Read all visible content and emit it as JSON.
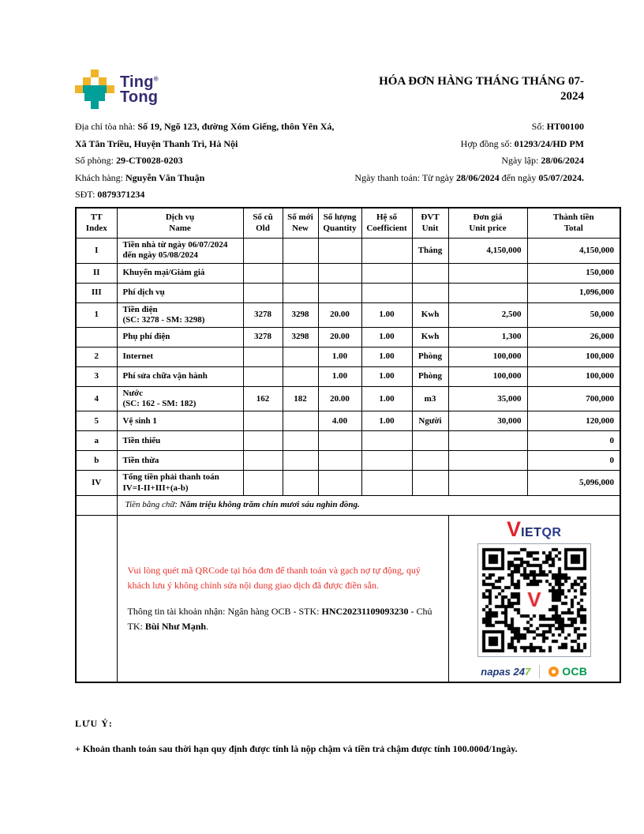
{
  "header": {
    "logo": {
      "ting": "Ting",
      "reg": "®",
      "tong": "Tong"
    },
    "title": "HÓA ĐƠN HÀNG THÁNG THÁNG 07-\n2024"
  },
  "info": {
    "addr_label": "Địa chỉ tòa nhà: ",
    "addr_value": "Số 19, Ngõ 123, đường Xóm Giếng, thôn Yên Xá,",
    "addr_value2": "Xã Tân Triều, Huyện Thanh Trì, Hà Nội",
    "room_label": "Số phòng: ",
    "room_value": "29-CT0028-0203",
    "customer_label": "Khách hàng: ",
    "customer_value": "Nguyễn Văn Thuận",
    "phone_label": "SĐT: ",
    "phone_value": "0879371234",
    "invoice_no_label": "Số: ",
    "invoice_no": "HT00100",
    "contract_label": "Hợp đồng số: ",
    "contract_no": "01293/24/HD PM",
    "issue_label": "Ngày lập: ",
    "issue_date": "28/06/2024",
    "pay_label": "Ngày thanh toán: Từ ngày ",
    "pay_from": "28/06/2024",
    "pay_mid": " đến ngày ",
    "pay_to": "05/07/2024",
    "pay_end": "."
  },
  "table": {
    "columns": [
      {
        "vi": "TT",
        "en": "Index"
      },
      {
        "vi": "Dịch vụ",
        "en": "Name"
      },
      {
        "vi": "Số cũ",
        "en": "Old"
      },
      {
        "vi": "Số mới",
        "en": "New"
      },
      {
        "vi": "Số lượng",
        "en": "Quantity"
      },
      {
        "vi": "Hệ số",
        "en": "Coefficient"
      },
      {
        "vi": "ĐVT",
        "en": "Unit"
      },
      {
        "vi": "Đơn giá",
        "en": "Unit price"
      },
      {
        "vi": "Thành tiền",
        "en": "Total"
      }
    ],
    "rows": [
      {
        "tt": "I",
        "name": "Tiền nhà từ ngày 06/07/2024\nđến ngày 05/08/2024",
        "old": "",
        "new": "",
        "qty": "",
        "coef": "",
        "unit": "Tháng",
        "price": "4,150,000",
        "total": "4,150,000"
      },
      {
        "tt": "II",
        "name": "Khuyến mại/Giảm giá",
        "old": "",
        "new": "",
        "qty": "",
        "coef": "",
        "unit": "",
        "price": "",
        "total": "150,000"
      },
      {
        "tt": "III",
        "name": "Phí dịch vụ",
        "old": "",
        "new": "",
        "qty": "",
        "coef": "",
        "unit": "",
        "price": "",
        "total": "1,096,000"
      },
      {
        "tt": "1",
        "name": "Tiền điện\n(SC: 3278 - SM: 3298)",
        "old": "3278",
        "new": "3298",
        "qty": "20.00",
        "coef": "1.00",
        "unit": "Kwh",
        "price": "2,500",
        "total": "50,000"
      },
      {
        "tt": "",
        "name": "Phụ phí điện",
        "old": "3278",
        "new": "3298",
        "qty": "20.00",
        "coef": "1.00",
        "unit": "Kwh",
        "price": "1,300",
        "total": "26,000"
      },
      {
        "tt": "2",
        "name": "Internet",
        "old": "",
        "new": "",
        "qty": "1.00",
        "coef": "1.00",
        "unit": "Phòng",
        "price": "100,000",
        "total": "100,000"
      },
      {
        "tt": "3",
        "name": "Phí sửa chữa vận hành",
        "old": "",
        "new": "",
        "qty": "1.00",
        "coef": "1.00",
        "unit": "Phòng",
        "price": "100,000",
        "total": "100,000"
      },
      {
        "tt": "4",
        "name": "Nước\n(SC: 162 - SM: 182)",
        "old": "162",
        "new": "182",
        "qty": "20.00",
        "coef": "1.00",
        "unit": "m3",
        "price": "35,000",
        "total": "700,000"
      },
      {
        "tt": "5",
        "name": "Vệ sinh 1",
        "old": "",
        "new": "",
        "qty": "4.00",
        "coef": "1.00",
        "unit": "Người",
        "price": "30,000",
        "total": "120,000"
      },
      {
        "tt": "a",
        "name": "Tiền thiếu",
        "old": "",
        "new": "",
        "qty": "",
        "coef": "",
        "unit": "",
        "price": "",
        "total": "0"
      },
      {
        "tt": "b",
        "name": "Tiền thừa",
        "old": "",
        "new": "",
        "qty": "",
        "coef": "",
        "unit": "",
        "price": "",
        "total": "0"
      },
      {
        "tt": "IV",
        "name": "Tổng tiền phải thanh toán\nIV=I-II+III+(a-b)",
        "old": "",
        "new": "",
        "qty": "",
        "coef": "",
        "unit": "",
        "price": "",
        "total": "5,096,000"
      }
    ],
    "amount_in_words_label": "Tiền bằng chữ: ",
    "amount_in_words": "Năm triệu không trăm chín mươi sáu nghìn đồng."
  },
  "payment": {
    "qr_notice": "Vui lòng quét mã QRCode tại hóa đơn để thanh toán và gạch nợ tự động, quý khách lưu ý không chỉnh sửa nội dung giao dịch đã được điền sẵn.",
    "account_prefix": "Thông tin tài khoản nhận: Ngân hàng OCB - STK: ",
    "account_number": "HNC20231109093230",
    "account_mid": " - Chủ TK: ",
    "account_holder": "Bùi Như Mạnh",
    "account_suffix": ".",
    "vietqr_v": "V",
    "vietqr_iet": "IET",
    "vietqr_qr": "QR",
    "napas_text": "napas 24",
    "napas_seven": "7",
    "ocb_text": "OCB"
  },
  "footer": {
    "heading": "LƯU Ý:",
    "note": "+ Khoản thanh toán sau thời hạn quy định được tính là nộp chậm và tiền trả chậm được tính 100.000đ/1ngày."
  },
  "colors": {
    "notice_red": "#e8302a",
    "logo_navy": "#322b70",
    "logo_yellow": "#f0b429",
    "logo_teal": "#00a099",
    "vietqr_red": "#e0242b",
    "vietqr_navy": "#1b2c6b",
    "napas_blue": "#1e3a7a",
    "napas_green": "#7ac143",
    "ocb_orange": "#f7941d",
    "ocb_green": "#009a4e"
  }
}
